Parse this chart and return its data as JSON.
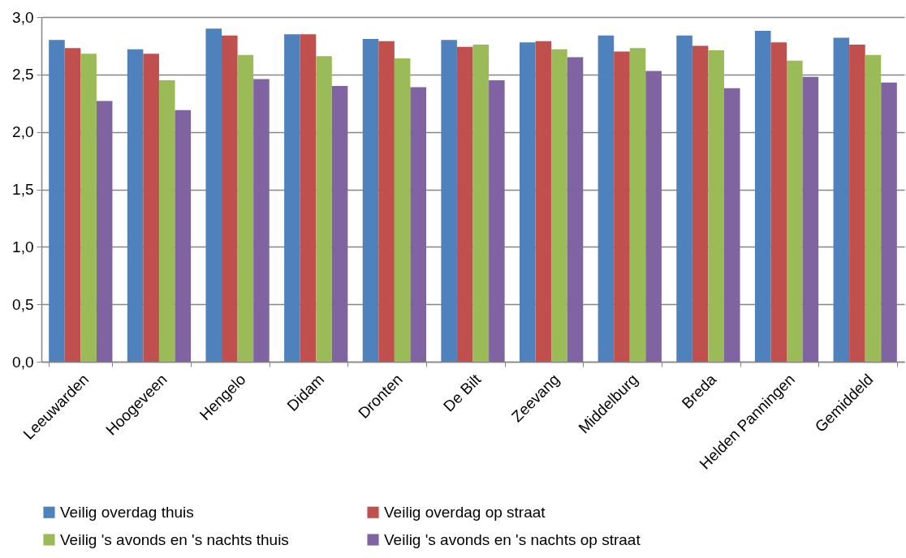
{
  "chart_data": {
    "type": "bar",
    "categories": [
      "Leeuwarden",
      "Hoogeveen",
      "Hengelo",
      "Didam",
      "Dronten",
      "De Bilt",
      "Zeevang",
      "Middelburg",
      "Breda",
      "Helden Panningen",
      "Gemiddeld"
    ],
    "series": [
      {
        "name": "Veilig overdag thuis",
        "color": "#4f81bd",
        "values": [
          2.8,
          2.72,
          2.9,
          2.85,
          2.81,
          2.8,
          2.78,
          2.84,
          2.84,
          2.88,
          2.82
        ]
      },
      {
        "name": "Veilig overdag op straat",
        "color": "#c0504d",
        "values": [
          2.73,
          2.68,
          2.84,
          2.85,
          2.79,
          2.74,
          2.79,
          2.7,
          2.75,
          2.78,
          2.76
        ]
      },
      {
        "name": "Veilig 's avonds en 's nachts thuis",
        "color": "#9bbb59",
        "values": [
          2.68,
          2.45,
          2.67,
          2.66,
          2.64,
          2.76,
          2.72,
          2.73,
          2.71,
          2.62,
          2.67
        ]
      },
      {
        "name": "Veilig 's avonds en 's nachts op straat",
        "color": "#8064a2",
        "values": [
          2.27,
          2.19,
          2.46,
          2.4,
          2.39,
          2.45,
          2.65,
          2.53,
          2.38,
          2.48,
          2.43
        ]
      }
    ],
    "ylim": [
      0,
      3
    ],
    "yticks": [
      {
        "value": 0,
        "label": "0,0"
      },
      {
        "value": 0.5,
        "label": "0,5"
      },
      {
        "value": 1,
        "label": "1,0"
      },
      {
        "value": 1.5,
        "label": "1,5"
      },
      {
        "value": 2,
        "label": "2,0"
      },
      {
        "value": 2.5,
        "label": "2,5"
      },
      {
        "value": 3,
        "label": "3,0"
      }
    ],
    "grid": "y",
    "legend": "bottom"
  }
}
